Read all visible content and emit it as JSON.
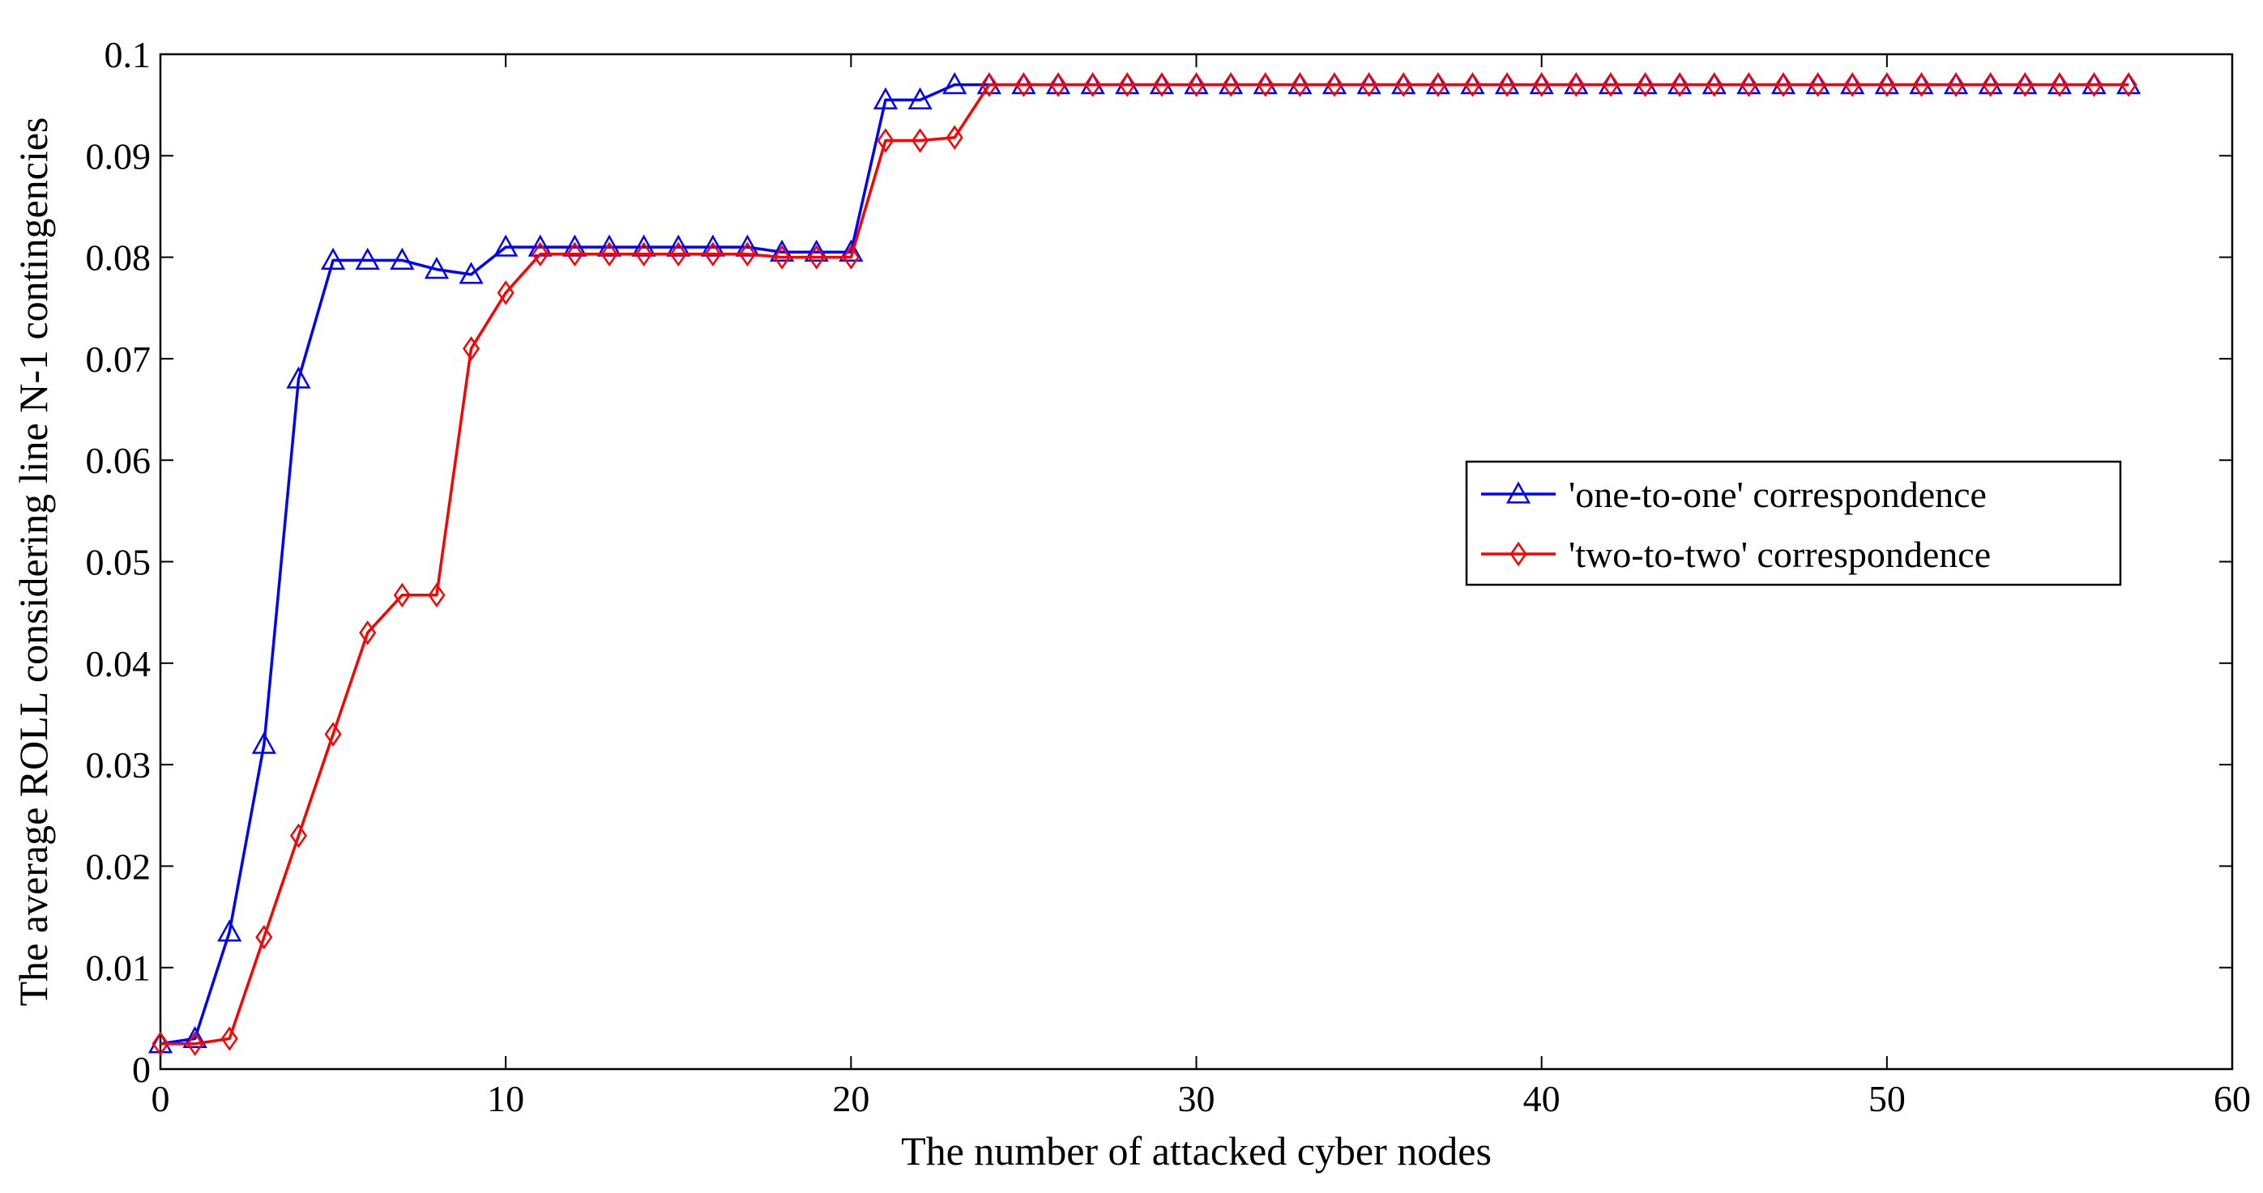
{
  "chart_data": {
    "type": "line",
    "xlabel": "The number of attacked cyber nodes",
    "ylabel": "The average ROLL  considering line N-1  contingencies",
    "xlim": [
      0,
      60
    ],
    "ylim": [
      0,
      0.1
    ],
    "x_ticks": [
      {
        "value": 0,
        "label": "0"
      },
      {
        "value": 10,
        "label": "10"
      },
      {
        "value": 20,
        "label": "20"
      },
      {
        "value": 30,
        "label": "30"
      },
      {
        "value": 40,
        "label": "40"
      },
      {
        "value": 50,
        "label": "50"
      },
      {
        "value": 60,
        "label": "60"
      }
    ],
    "y_ticks": [
      {
        "value": 0,
        "label": "0"
      },
      {
        "value": 0.01,
        "label": "0.01"
      },
      {
        "value": 0.02,
        "label": "0.02"
      },
      {
        "value": 0.03,
        "label": "0.03"
      },
      {
        "value": 0.04,
        "label": "0.04"
      },
      {
        "value": 0.05,
        "label": "0.05"
      },
      {
        "value": 0.06,
        "label": "0.06"
      },
      {
        "value": 0.07,
        "label": "0.07"
      },
      {
        "value": 0.08,
        "label": "0.08"
      },
      {
        "value": 0.09,
        "label": "0.09"
      },
      {
        "value": 0.1,
        "label": "0.1"
      }
    ],
    "grid": false,
    "legend_position": "right",
    "series": [
      {
        "name": "'one-to-one' correspondence",
        "color": "#0000ff",
        "marker": "triangle",
        "x": [
          0,
          1,
          2,
          3,
          4,
          5,
          6,
          7,
          8,
          9,
          10,
          11,
          12,
          13,
          14,
          15,
          16,
          17,
          18,
          19,
          20,
          21,
          22,
          23,
          24,
          25,
          26,
          27,
          28,
          29,
          30,
          31,
          32,
          33,
          34,
          35,
          36,
          37,
          38,
          39,
          40,
          41,
          42,
          43,
          44,
          45,
          46,
          47,
          48,
          49,
          50,
          51,
          52,
          53,
          54,
          55,
          56,
          57
        ],
        "y": [
          0.0025,
          0.003,
          0.0135,
          0.032,
          0.068,
          0.0797,
          0.0797,
          0.0797,
          0.0788,
          0.0783,
          0.081,
          0.081,
          0.081,
          0.081,
          0.081,
          0.081,
          0.081,
          0.081,
          0.0805,
          0.0805,
          0.0805,
          0.0955,
          0.0955,
          0.097,
          0.097,
          0.097,
          0.097,
          0.097,
          0.097,
          0.097,
          0.097,
          0.097,
          0.097,
          0.097,
          0.097,
          0.097,
          0.097,
          0.097,
          0.097,
          0.097,
          0.097,
          0.097,
          0.097,
          0.097,
          0.097,
          0.097,
          0.097,
          0.097,
          0.097,
          0.097,
          0.097,
          0.097,
          0.097,
          0.097,
          0.097,
          0.097,
          0.097,
          0.097
        ]
      },
      {
        "name": "'two-to-two' correspondence",
        "color": "#ff0000",
        "marker": "diamond",
        "x": [
          0,
          1,
          2,
          3,
          4,
          5,
          6,
          7,
          8,
          9,
          10,
          11,
          12,
          13,
          14,
          15,
          16,
          17,
          18,
          19,
          20,
          21,
          22,
          23,
          24,
          25,
          26,
          27,
          28,
          29,
          30,
          31,
          32,
          33,
          34,
          35,
          36,
          37,
          38,
          39,
          40,
          41,
          42,
          43,
          44,
          45,
          46,
          47,
          48,
          49,
          50,
          51,
          52,
          53,
          54,
          55,
          56,
          57
        ],
        "y": [
          0.0025,
          0.0025,
          0.003,
          0.013,
          0.023,
          0.033,
          0.043,
          0.0467,
          0.0467,
          0.071,
          0.0765,
          0.0803,
          0.0803,
          0.0803,
          0.0803,
          0.0803,
          0.0803,
          0.0803,
          0.08,
          0.08,
          0.08,
          0.0915,
          0.0915,
          0.0918,
          0.097,
          0.097,
          0.097,
          0.097,
          0.097,
          0.097,
          0.097,
          0.097,
          0.097,
          0.097,
          0.097,
          0.097,
          0.097,
          0.097,
          0.097,
          0.097,
          0.097,
          0.097,
          0.097,
          0.097,
          0.097,
          0.097,
          0.097,
          0.097,
          0.097,
          0.097,
          0.097,
          0.097,
          0.097,
          0.097,
          0.097,
          0.097,
          0.097,
          0.097
        ]
      }
    ]
  }
}
